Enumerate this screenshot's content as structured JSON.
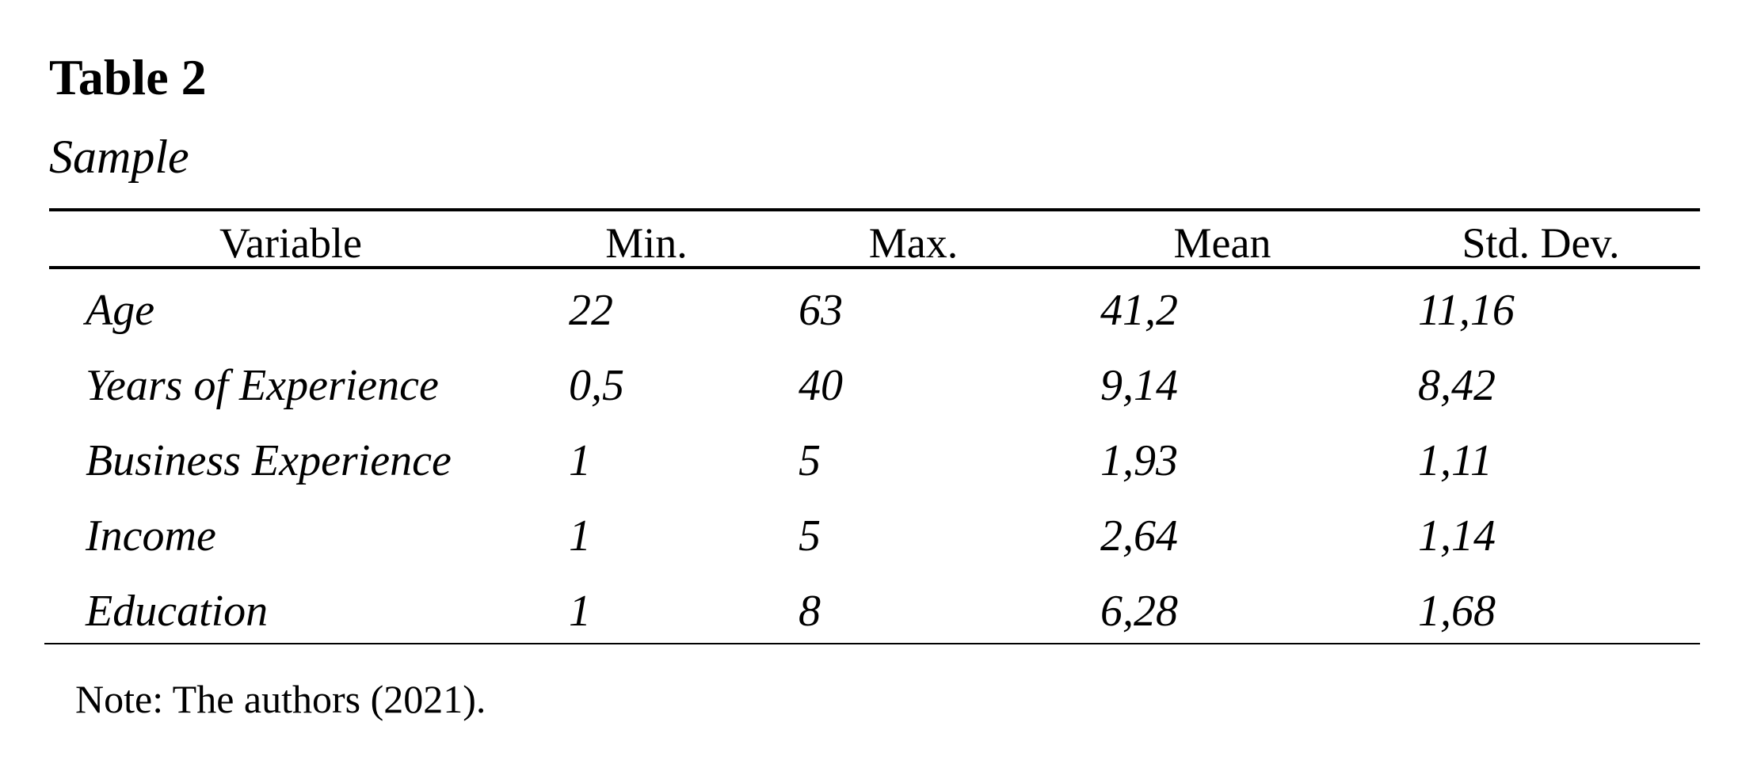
{
  "title": "Table 2",
  "subtitle": "Sample",
  "columns": [
    "Variable",
    "Min.",
    "Max.",
    "Mean",
    "Std. Dev."
  ],
  "rows": [
    [
      "Age",
      "22",
      "63",
      "41,2",
      "11,16"
    ],
    [
      "Years of Experience",
      "0,5",
      "40",
      "9,14",
      "8,42"
    ],
    [
      "Business Experience",
      "1",
      "5",
      "1,93",
      "1,11"
    ],
    [
      "Income",
      "1",
      "5",
      "2,64",
      "1,14"
    ],
    [
      "Education",
      "1",
      "8",
      "6,28",
      "1,68"
    ]
  ],
  "note": "Note: The authors (2021)."
}
